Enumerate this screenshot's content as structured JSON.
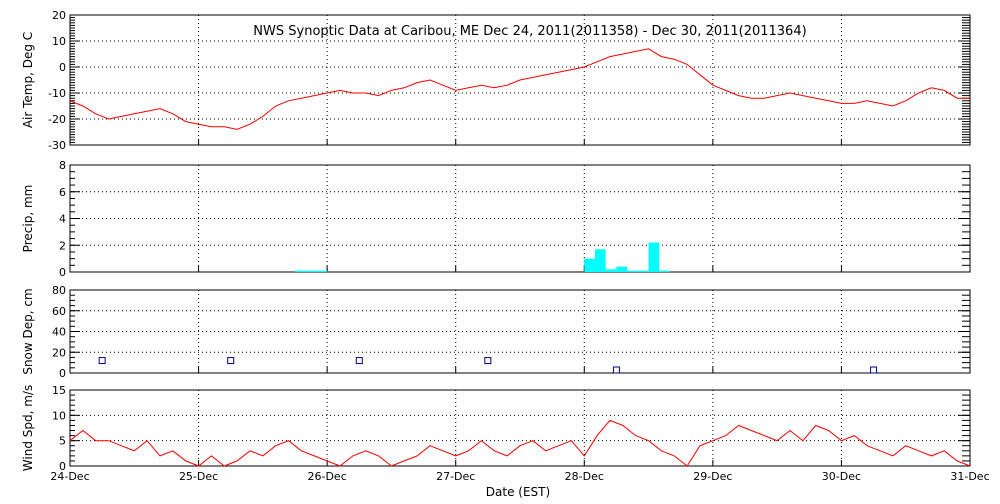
{
  "title": "NWS Synoptic Data at Caribou, ME    Dec 24, 2011(2011358) - Dec 30, 2011(2011364)",
  "xlabel": "Date (EST)",
  "x_ticks": [
    "24-Dec",
    "25-Dec",
    "26-Dec",
    "27-Dec",
    "28-Dec",
    "29-Dec",
    "30-Dec",
    "31-Dec"
  ],
  "colors": {
    "temp": "#ff0000",
    "precip": "#00ffff",
    "snow": "#00008b",
    "wind": "#ff0000",
    "axis": "#000000"
  },
  "chart_data": [
    {
      "type": "line",
      "ylabel": "Air Temp, Deg C",
      "ylim": [
        -30,
        20
      ],
      "yticks": [
        20,
        10,
        0,
        -10,
        -20,
        -30
      ],
      "grid": true,
      "x_range_days": [
        0,
        7
      ],
      "series": [
        {
          "x": [
            0,
            0.1,
            0.2,
            0.3,
            0.4,
            0.5,
            0.6,
            0.7,
            0.8,
            0.9,
            1.0,
            1.1,
            1.2,
            1.3,
            1.4,
            1.5,
            1.6,
            1.7,
            1.8,
            1.9,
            2.0,
            2.1,
            2.2,
            2.3,
            2.4,
            2.5,
            2.6,
            2.7,
            2.8,
            2.9,
            3.0,
            3.1,
            3.2,
            3.3,
            3.4,
            3.5,
            3.6,
            3.7,
            3.8,
            3.9,
            4.0,
            4.1,
            4.2,
            4.3,
            4.4,
            4.5,
            4.6,
            4.7,
            4.8,
            4.9,
            5.0,
            5.1,
            5.2,
            5.3,
            5.4,
            5.5,
            5.6,
            5.7,
            5.8,
            5.9,
            6.0,
            6.1,
            6.2,
            6.3,
            6.4,
            6.5,
            6.6,
            6.7,
            6.8,
            6.9,
            7.0
          ],
          "values": [
            -13,
            -15,
            -18,
            -20,
            -19,
            -18,
            -17,
            -16,
            -18,
            -21,
            -22,
            -23,
            -23,
            -24,
            -22,
            -19,
            -15,
            -13,
            -12,
            -11,
            -10,
            -9,
            -10,
            -10,
            -11,
            -9,
            -8,
            -6,
            -5,
            -7,
            -9,
            -8,
            -7,
            -8,
            -7,
            -5,
            -4,
            -3,
            -2,
            -1,
            0,
            2,
            4,
            5,
            6,
            7,
            4,
            3,
            1,
            -3,
            -7,
            -9,
            -11,
            -12,
            -12,
            -11,
            -10,
            -11,
            -12,
            -13,
            -14,
            -14,
            -13,
            -14,
            -15,
            -13,
            -10,
            -8,
            -9,
            -12,
            -12
          ]
        }
      ]
    },
    {
      "type": "bar",
      "ylabel": "Precip, mm",
      "ylim": [
        0,
        8
      ],
      "yticks": [
        8,
        6,
        4,
        2,
        0
      ],
      "grid": true,
      "series": [
        {
          "x": [
            1.75,
            1.833,
            1.917,
            4.0,
            4.083,
            4.167,
            4.25,
            4.333,
            4.417,
            4.5,
            4.583
          ],
          "values": [
            0.1,
            0.1,
            0.1,
            1.0,
            1.7,
            0.2,
            0.4,
            0.1,
            0.1,
            2.2,
            0.1
          ]
        }
      ]
    },
    {
      "type": "scatter",
      "ylabel": "Snow Dep, cm",
      "ylim": [
        0,
        80
      ],
      "yticks": [
        80,
        60,
        40,
        20,
        0
      ],
      "grid": true,
      "series": [
        {
          "x": [
            0.25,
            1.25,
            2.25,
            3.25,
            4.25,
            6.25
          ],
          "values": [
            12,
            12,
            12,
            12,
            2,
            0
          ]
        }
      ]
    },
    {
      "type": "line",
      "ylabel": "Wind Spd, m/s",
      "ylim": [
        0,
        15
      ],
      "yticks": [
        15,
        10,
        5,
        0
      ],
      "grid": true,
      "series": [
        {
          "x": [
            0,
            0.1,
            0.2,
            0.3,
            0.4,
            0.5,
            0.6,
            0.7,
            0.8,
            0.9,
            1.0,
            1.1,
            1.2,
            1.3,
            1.4,
            1.5,
            1.6,
            1.7,
            1.8,
            1.9,
            2.0,
            2.1,
            2.2,
            2.3,
            2.4,
            2.5,
            2.6,
            2.7,
            2.8,
            2.9,
            3.0,
            3.1,
            3.2,
            3.3,
            3.4,
            3.5,
            3.6,
            3.7,
            3.8,
            3.9,
            4.0,
            4.1,
            4.2,
            4.3,
            4.4,
            4.5,
            4.6,
            4.7,
            4.8,
            4.9,
            5.0,
            5.1,
            5.2,
            5.3,
            5.4,
            5.5,
            5.6,
            5.7,
            5.8,
            5.9,
            6.0,
            6.1,
            6.2,
            6.3,
            6.4,
            6.5,
            6.6,
            6.7,
            6.8,
            6.9,
            7.0
          ],
          "values": [
            5,
            7,
            5,
            5,
            4,
            3,
            5,
            2,
            3,
            1,
            0,
            2,
            0,
            1,
            3,
            2,
            4,
            5,
            3,
            2,
            1,
            0,
            2,
            3,
            2,
            0,
            1,
            2,
            4,
            3,
            2,
            3,
            5,
            3,
            2,
            4,
            5,
            3,
            4,
            5,
            2,
            6,
            9,
            8,
            6,
            5,
            3,
            2,
            0,
            4,
            5,
            6,
            8,
            7,
            6,
            5,
            7,
            5,
            8,
            7,
            5,
            6,
            4,
            3,
            2,
            4,
            3,
            2,
            3,
            1,
            0
          ]
        }
      ]
    }
  ]
}
